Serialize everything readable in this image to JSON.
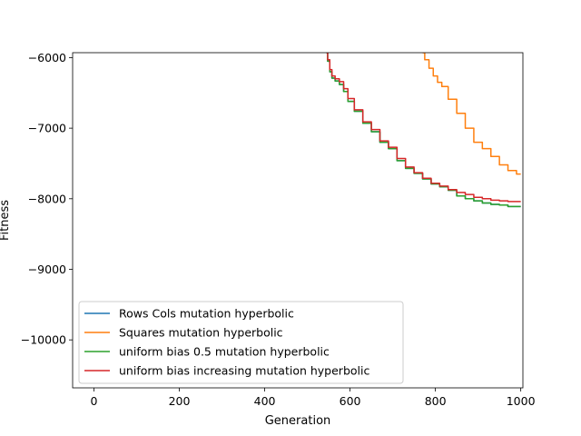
{
  "chart_data": {
    "type": "line",
    "title": "",
    "xlabel": "Generation",
    "ylabel": "Fitness",
    "xlim": [
      -50,
      1005
    ],
    "ylim": [
      -10680,
      -5930
    ],
    "xticks": [
      0,
      200,
      400,
      600,
      800,
      1000
    ],
    "yticks": [
      -10000,
      -9000,
      -8000,
      -7000,
      -6000
    ],
    "ytick_labels": [
      "−10000",
      "−9000",
      "−8000",
      "−7000",
      "−6000"
    ],
    "grid": false,
    "legend_position": "lower-left",
    "series": [
      {
        "name": "Rows Cols mutation hyperbolic",
        "color": "#1f77b4",
        "x": [
          545,
          550,
          555,
          560,
          570,
          580,
          590,
          600,
          620,
          640,
          660,
          680,
          700,
          720,
          740,
          760,
          780,
          800,
          820,
          840,
          860,
          880,
          900,
          920,
          940,
          960,
          980,
          1000
        ],
        "y": [
          -5930,
          -6050,
          -6200,
          -6290,
          -6330,
          -6380,
          -6480,
          -6620,
          -6760,
          -6930,
          -7050,
          -7200,
          -7290,
          -7460,
          -7570,
          -7640,
          -7720,
          -7790,
          -7830,
          -7880,
          -7960,
          -8000,
          -8030,
          -8060,
          -8080,
          -8090,
          -8110,
          -8110
        ]
      },
      {
        "name": "Squares mutation hyperbolic",
        "color": "#ff7f0e",
        "x": [
          770,
          780,
          790,
          800,
          810,
          820,
          840,
          860,
          880,
          900,
          920,
          940,
          960,
          980,
          1000
        ],
        "y": [
          -5930,
          -6030,
          -6150,
          -6260,
          -6350,
          -6410,
          -6590,
          -6790,
          -7000,
          -7200,
          -7290,
          -7400,
          -7520,
          -7600,
          -7650
        ]
      },
      {
        "name": "uniform bias 0.5 mutation hyperbolic",
        "color": "#2ca02c",
        "x": [
          545,
          550,
          555,
          560,
          570,
          580,
          590,
          600,
          620,
          640,
          660,
          680,
          700,
          720,
          740,
          760,
          780,
          800,
          820,
          840,
          860,
          880,
          900,
          920,
          940,
          960,
          980,
          1000
        ],
        "y": [
          -5930,
          -6050,
          -6200,
          -6290,
          -6330,
          -6380,
          -6480,
          -6620,
          -6760,
          -6930,
          -7050,
          -7200,
          -7290,
          -7460,
          -7570,
          -7640,
          -7720,
          -7790,
          -7830,
          -7880,
          -7960,
          -8000,
          -8030,
          -8060,
          -8080,
          -8090,
          -8110,
          -8110
        ]
      },
      {
        "name": "uniform bias increasing mutation hyperbolic",
        "color": "#d62728",
        "x": [
          545,
          550,
          555,
          560,
          570,
          580,
          590,
          600,
          620,
          640,
          660,
          680,
          700,
          720,
          740,
          760,
          780,
          800,
          820,
          840,
          860,
          880,
          900,
          920,
          940,
          960,
          980,
          1000
        ],
        "y": [
          -5930,
          -6030,
          -6170,
          -6260,
          -6300,
          -6340,
          -6440,
          -6580,
          -6740,
          -6910,
          -7020,
          -7180,
          -7270,
          -7430,
          -7550,
          -7630,
          -7710,
          -7780,
          -7820,
          -7870,
          -7910,
          -7940,
          -7980,
          -8000,
          -8020,
          -8030,
          -8040,
          -8040
        ]
      }
    ]
  }
}
